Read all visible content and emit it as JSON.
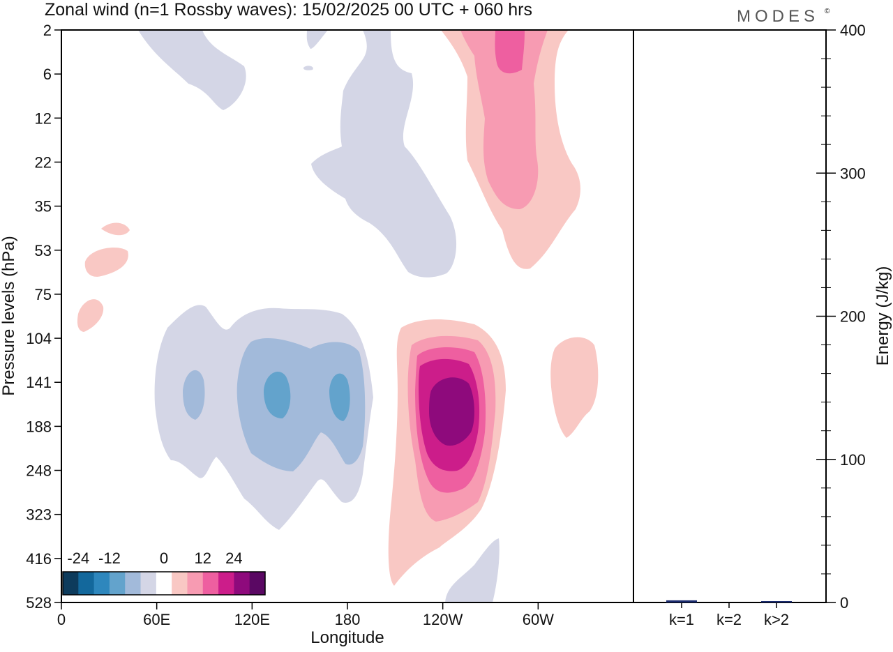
{
  "header": {
    "title": "Zonal wind (n=1 Rossby waves):  15/02/2025  00 UTC  + 060 hrs",
    "brand": "MODES",
    "brand_mark": "©"
  },
  "chart_data": [
    {
      "type": "heatmap",
      "title": "Zonal wind (n=1 Rossby waves):  15/02/2025  00 UTC  + 060 hrs",
      "xlabel": "Longitude",
      "ylabel": "Pressure levels (hPa)",
      "x_ticks": [
        "0",
        "60E",
        "120E",
        "180",
        "120W",
        "60W"
      ],
      "x_tick_values": [
        0,
        60,
        120,
        180,
        240,
        300
      ],
      "xlim": [
        0,
        360
      ],
      "y_ticks": [
        "2",
        "6",
        "12",
        "22",
        "35",
        "53",
        "75",
        "104",
        "141",
        "188",
        "248",
        "323",
        "416",
        "528"
      ],
      "colorbar": {
        "labels": [
          "-24",
          "-12",
          "0",
          "12",
          "24"
        ],
        "levels": [
          -30,
          -24,
          -18,
          -12,
          -6,
          -3,
          3,
          6,
          12,
          18,
          24,
          30
        ],
        "colors": [
          "#0d3b5c",
          "#13689c",
          "#2e87bd",
          "#63a3cc",
          "#a2bada",
          "#d4d6e6",
          "#ffffff",
          "#f9c8c4",
          "#f79bb2",
          "#ee5fa0",
          "#cc1d8a",
          "#8e0a7c",
          "#5a0863"
        ]
      },
      "features": [
        {
          "kind": "neg",
          "level": -3,
          "lon": 165,
          "p": "6-53",
          "note": "upper band"
        },
        {
          "kind": "neg",
          "level": -6,
          "lon": 120,
          "p": "104-248"
        },
        {
          "kind": "neg",
          "level": -12,
          "lon": 130,
          "p": "141"
        },
        {
          "kind": "pos",
          "level": 24,
          "lon": 250,
          "p": "141-188"
        },
        {
          "kind": "pos",
          "level": 12,
          "lon": 282,
          "p": "2-35"
        },
        {
          "kind": "pos",
          "level": 3,
          "lon": 326,
          "p": "104-188"
        }
      ]
    },
    {
      "type": "bar",
      "ylabel": "Energy (J/kg)",
      "categories": [
        "k=1",
        "k=2",
        "k>2"
      ],
      "values": [
        1.5,
        0,
        0.8
      ],
      "ylim": [
        0,
        400
      ],
      "y_ticks": [
        "0",
        "100",
        "200",
        "300",
        "400"
      ],
      "bar_color": "#1a2b6e"
    }
  ]
}
